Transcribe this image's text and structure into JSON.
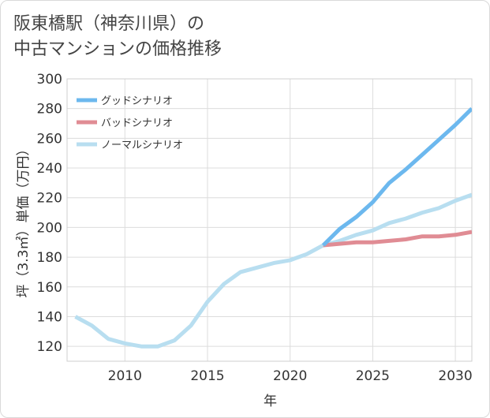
{
  "title": {
    "line1": "阪東橋駅（神奈川県）の",
    "line2": "中古マンションの価格推移"
  },
  "chart_data": {
    "type": "line",
    "xlabel": "年",
    "ylabel": "坪（3.3㎡）単価（万円）",
    "xlim": [
      2006.5,
      2031
    ],
    "ylim": [
      110,
      300
    ],
    "x_ticks": [
      2010,
      2015,
      2020,
      2025,
      2030
    ],
    "y_ticks": [
      120,
      140,
      160,
      180,
      200,
      220,
      240,
      260,
      280,
      300
    ],
    "grid": true,
    "legend_position": "top-left",
    "series": [
      {
        "name": "グッドシナリオ",
        "color": "#6cb8ee",
        "x": [
          2022,
          2023,
          2024,
          2025,
          2026,
          2027,
          2028,
          2029,
          2030,
          2031
        ],
        "y": [
          188,
          199,
          207,
          217,
          230,
          239,
          249,
          259,
          269,
          280
        ]
      },
      {
        "name": "バッドシナリオ",
        "color": "#e08c94",
        "x": [
          2022,
          2023,
          2024,
          2025,
          2026,
          2027,
          2028,
          2029,
          2030,
          2031
        ],
        "y": [
          188,
          189,
          190,
          190,
          191,
          192,
          194,
          194,
          195,
          197
        ]
      },
      {
        "name": "ノーマルシナリオ",
        "color": "#b8def0",
        "x": [
          2007,
          2008,
          2009,
          2010,
          2011,
          2012,
          2013,
          2014,
          2015,
          2016,
          2017,
          2018,
          2019,
          2020,
          2021,
          2022,
          2023,
          2024,
          2025,
          2026,
          2027,
          2028,
          2029,
          2030,
          2031
        ],
        "y": [
          140,
          134,
          125,
          122,
          120,
          120,
          124,
          134,
          150,
          162,
          170,
          173,
          176,
          178,
          182,
          188,
          191,
          195,
          198,
          203,
          206,
          210,
          213,
          218,
          222
        ]
      }
    ]
  }
}
